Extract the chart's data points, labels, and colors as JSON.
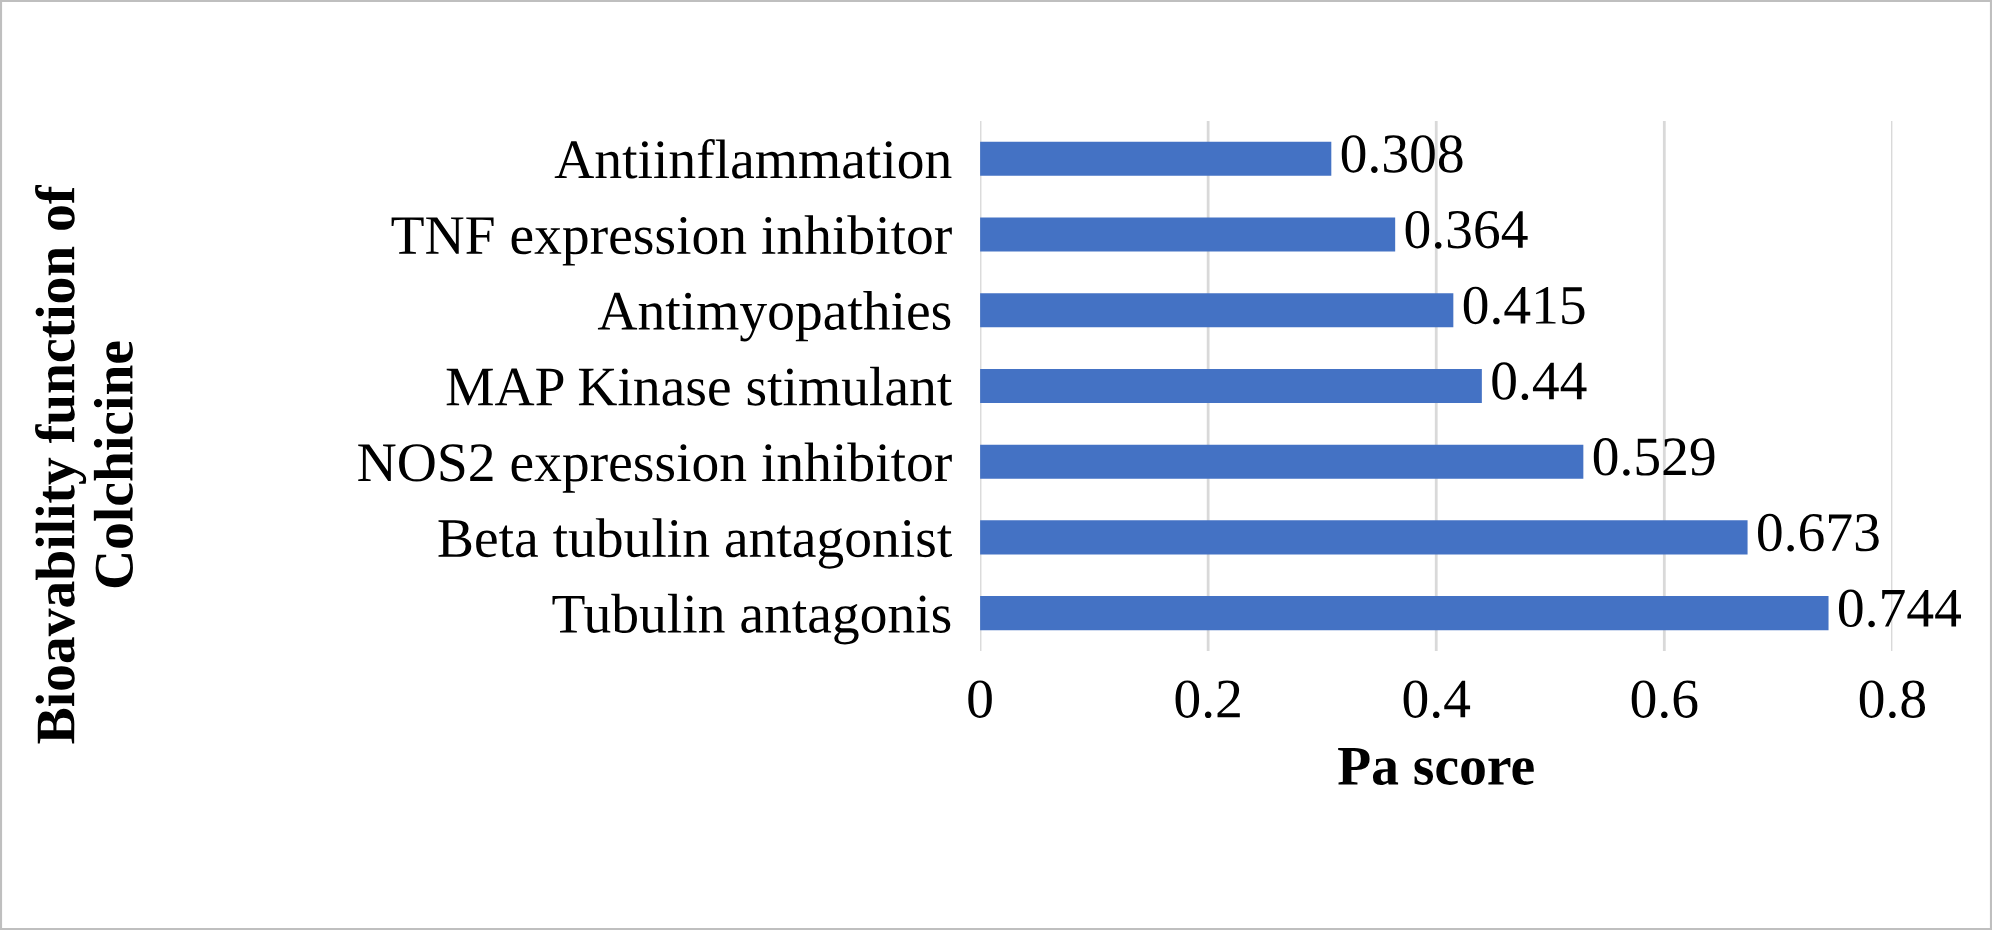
{
  "chart_data": {
    "type": "bar",
    "orientation": "horizontal",
    "xlabel": "Pa score",
    "ylabel": "Bioavability function of\nColchicine",
    "categories": [
      "Antiinflammation",
      "TNF expression inhibitor",
      "Antimyopathies",
      "MAP Kinase stimulant",
      "NOS2 expression inhibitor",
      "Beta tubulin antagonist",
      "Tubulin antagonis"
    ],
    "values": [
      0.308,
      0.364,
      0.415,
      0.44,
      0.529,
      0.673,
      0.744
    ],
    "color": "#4472c4",
    "xlim": [
      0,
      0.8
    ],
    "xticks": [
      0,
      0.2,
      0.4,
      0.6,
      0.8
    ],
    "grid": "x",
    "data_labels": true,
    "legend": false
  }
}
